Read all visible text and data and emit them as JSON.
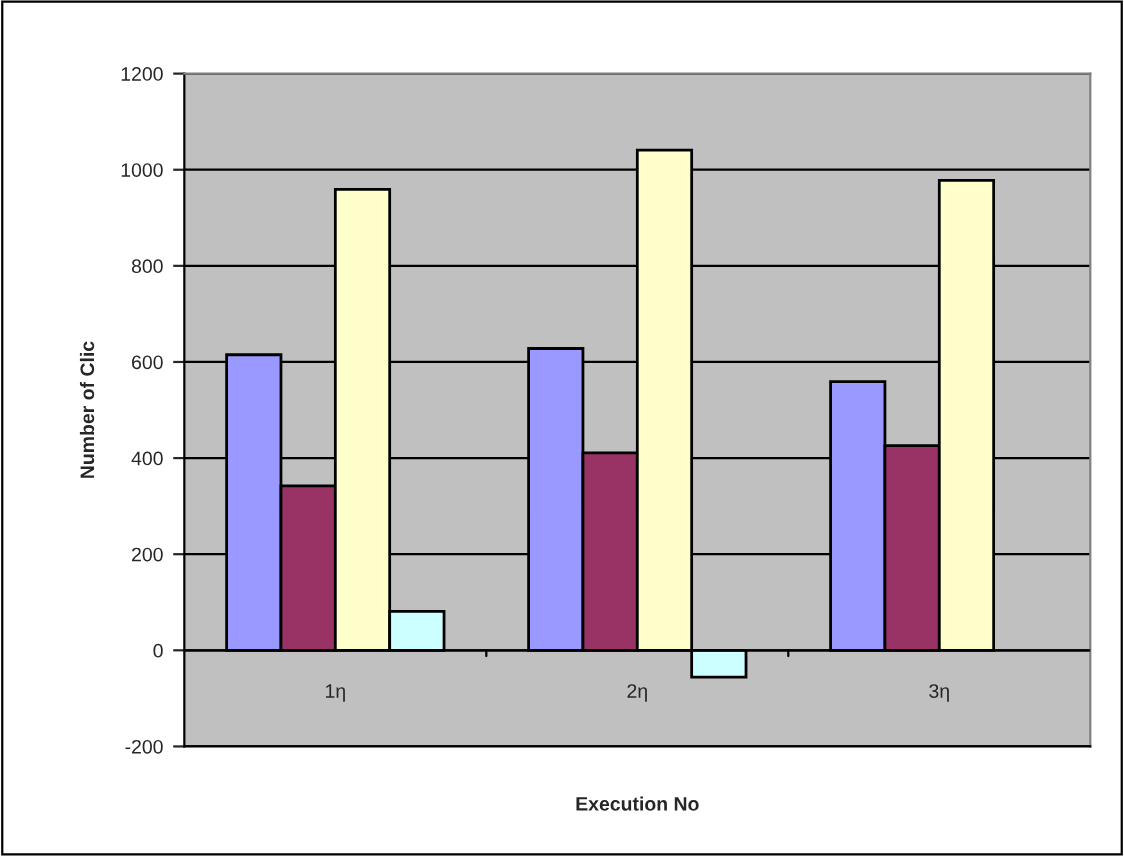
{
  "chart_data": {
    "type": "bar",
    "xlabel": "Execution No",
    "ylabel": "Number of Clic",
    "categories": [
      "1η",
      "2η",
      "3η"
    ],
    "series": [
      {
        "color": "#9999ff",
        "values": [
          615,
          628,
          559
        ]
      },
      {
        "color": "#993366",
        "values": [
          342,
          411,
          426
        ]
      },
      {
        "color": "#ffffcc",
        "values": [
          959,
          1041,
          978
        ]
      },
      {
        "color": "#ccffff",
        "values": [
          81,
          -56,
          null
        ]
      }
    ],
    "ylim": [
      -200,
      1200
    ],
    "yticks": [
      -200,
      0,
      200,
      400,
      600,
      800,
      1000,
      1200
    ],
    "grid": "y"
  }
}
